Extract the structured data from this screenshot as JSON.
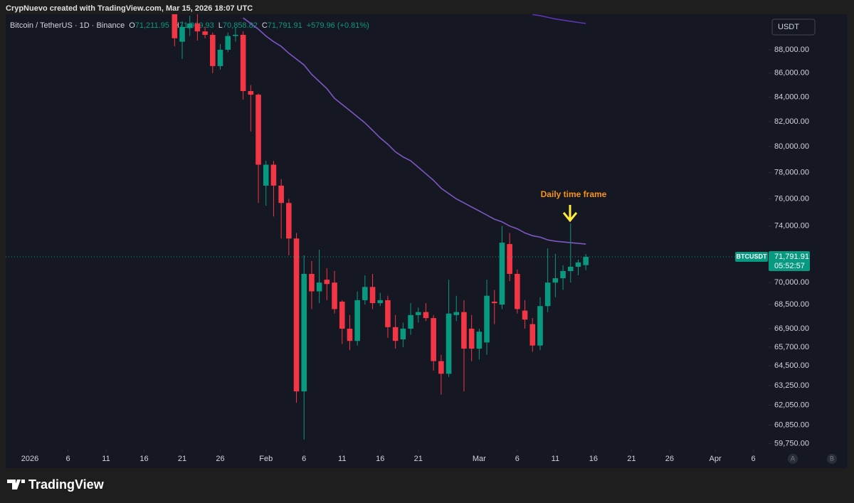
{
  "header": {
    "credit": "CrypNuevo created with TradingView.com, Mar 15, 2026 18:07 UTC"
  },
  "footer": {
    "brand": "TradingView"
  },
  "buttons": [
    "A",
    "B"
  ],
  "chart_data": {
    "type": "candlestick",
    "symbol": "Bitcoin / TetherUS · 1D · Binance",
    "legend": [
      {
        "key": "O",
        "label": "71,211.95"
      },
      {
        "key": "H",
        "label": "71,989.93"
      },
      {
        "key": "L",
        "label": "70,858.82"
      },
      {
        "key": "C",
        "label": "71,791.91"
      }
    ],
    "change": "+579.96 (+0.81%)",
    "currency": "USDT",
    "symbol_tag": "BTCUSDT",
    "last_price": {
      "value": 71791.91,
      "label": "71,791.91"
    },
    "countdown": "05:52:57",
    "annotation": "Daily time frame",
    "up_color": "#089981",
    "down_color": "#f23645",
    "log_scale": true,
    "grid": false,
    "x": [
      "2026-01-20",
      "2026-01-21",
      "2026-01-22",
      "2026-01-23",
      "2026-01-24",
      "2026-01-25",
      "2026-01-26",
      "2026-01-27",
      "2026-01-28",
      "2026-01-29",
      "2026-01-30",
      "2026-01-31",
      "2026-02-01",
      "2026-02-02",
      "2026-02-03",
      "2026-02-04",
      "2026-02-05",
      "2026-02-06",
      "2026-02-07",
      "2026-02-08",
      "2026-02-09",
      "2026-02-10",
      "2026-02-11",
      "2026-02-12",
      "2026-02-13",
      "2026-02-14",
      "2026-02-15",
      "2026-02-16",
      "2026-02-17",
      "2026-02-18",
      "2026-02-19",
      "2026-02-20",
      "2026-02-21",
      "2026-02-22",
      "2026-02-23",
      "2026-02-24",
      "2026-02-25",
      "2026-02-26",
      "2026-02-27",
      "2026-02-28",
      "2026-03-01",
      "2026-03-02",
      "2026-03-03",
      "2026-03-04",
      "2026-03-05",
      "2026-03-06",
      "2026-03-07",
      "2026-03-08",
      "2026-03-09",
      "2026-03-10",
      "2026-03-11",
      "2026-03-12",
      "2026-03-13",
      "2026-03-14",
      "2026-03-15"
    ],
    "open": [
      92000,
      88700,
      89900,
      90300,
      89600,
      89300,
      86600,
      88000,
      89200,
      89300,
      84500,
      84200,
      77000,
      78600,
      77000,
      75700,
      73100,
      62900,
      70600,
      69400,
      70200,
      70000,
      68700,
      66900,
      66100,
      68800,
      69700,
      68600,
      68800,
      67000,
      66200,
      66900,
      67800,
      68000,
      67600,
      64800,
      64000,
      67800,
      68000,
      66900,
      65600,
      66000,
      68700,
      68500,
      72700,
      70600,
      68100,
      67200,
      65800,
      68400,
      70000,
      70300,
      70800,
      71100,
      71211.95
    ],
    "high": [
      92500,
      90500,
      91000,
      91500,
      90000,
      89500,
      88500,
      89500,
      90000,
      89600,
      85000,
      84300,
      78900,
      78900,
      77500,
      76000,
      73500,
      71900,
      71500,
      72300,
      71000,
      70800,
      68800,
      67800,
      69400,
      70500,
      70600,
      69300,
      69100,
      67800,
      67300,
      68600,
      68300,
      68600,
      67800,
      65200,
      70200,
      69100,
      68800,
      67800,
      66900,
      70200,
      69500,
      74000,
      73500,
      70900,
      68800,
      67600,
      69000,
      72400,
      72000,
      71200,
      74200,
      71600,
      71989.93
    ],
    "low": [
      88300,
      87200,
      89200,
      88800,
      89000,
      86000,
      86300,
      87800,
      88700,
      83800,
      81200,
      75700,
      75500,
      74700,
      73100,
      71900,
      62200,
      60000,
      68200,
      68600,
      68800,
      67900,
      65900,
      65500,
      65800,
      68500,
      68200,
      68400,
      66300,
      65600,
      65700,
      66500,
      67300,
      67400,
      64200,
      62700,
      63800,
      67400,
      62900,
      64800,
      64900,
      65200,
      67200,
      68200,
      70100,
      67900,
      66900,
      65400,
      65500,
      68000,
      69000,
      69500,
      70000,
      70500,
      70858.82
    ],
    "close": [
      89000,
      90000,
      90300,
      89600,
      89300,
      86600,
      88000,
      89200,
      89300,
      84500,
      84200,
      78600,
      78600,
      77000,
      75700,
      73100,
      62900,
      70600,
      69400,
      70000,
      69900,
      68200,
      66900,
      66100,
      68800,
      69700,
      68600,
      68800,
      67000,
      66100,
      66900,
      67800,
      68000,
      67600,
      64800,
      64000,
      67900,
      68000,
      65600,
      65600,
      66700,
      69100,
      68600,
      72800,
      70600,
      68200,
      67500,
      65800,
      68400,
      70000,
      70300,
      70800,
      71100,
      71400,
      71791.91
    ],
    "overlays": [
      {
        "color": "#7e57c2",
        "values": [
          null,
          null,
          null,
          null,
          null,
          null,
          null,
          null,
          null,
          90800,
          90300,
          89800,
          89200,
          88700,
          88300,
          87700,
          87200,
          86700,
          85900,
          85300,
          84700,
          83900,
          83400,
          82900,
          82400,
          81900,
          81300,
          80700,
          80200,
          79600,
          79200,
          78900,
          78400,
          77900,
          77400,
          76800,
          76400,
          76000,
          75700,
          75400,
          75100,
          74800,
          74500,
          74300,
          74000,
          73800,
          73500,
          73300,
          73200,
          73000,
          72900,
          72850,
          72800,
          72750,
          72700
        ]
      },
      {
        "color": "#5e35b1",
        "values": [
          null,
          null,
          null,
          null,
          null,
          null,
          null,
          null,
          null,
          null,
          null,
          null,
          null,
          null,
          null,
          null,
          null,
          null,
          null,
          null,
          null,
          null,
          null,
          null,
          null,
          null,
          null,
          null,
          null,
          null,
          null,
          null,
          null,
          null,
          null,
          null,
          null,
          null,
          null,
          null,
          null,
          null,
          null,
          null,
          null,
          null,
          null,
          91100,
          91000,
          90850,
          90700,
          90600,
          90500,
          90400,
          90300
        ]
      }
    ],
    "xlim": [
      "2026-01-01",
      "2026-04-08"
    ],
    "xticks": [
      {
        "value": "2026-01-01",
        "label": "2026"
      },
      {
        "value": "2026-01-06",
        "label": "6"
      },
      {
        "value": "2026-01-11",
        "label": "11"
      },
      {
        "value": "2026-01-16",
        "label": "16"
      },
      {
        "value": "2026-01-21",
        "label": "21"
      },
      {
        "value": "2026-01-26",
        "label": "26"
      },
      {
        "value": "2026-02-01",
        "label": "Feb"
      },
      {
        "value": "2026-02-06",
        "label": "6"
      },
      {
        "value": "2026-02-11",
        "label": "11"
      },
      {
        "value": "2026-02-16",
        "label": "16"
      },
      {
        "value": "2026-02-21",
        "label": "21"
      },
      {
        "value": "2026-03-01",
        "label": "Mar"
      },
      {
        "value": "2026-03-06",
        "label": "6"
      },
      {
        "value": "2026-03-11",
        "label": "11"
      },
      {
        "value": "2026-03-16",
        "label": "16"
      },
      {
        "value": "2026-03-21",
        "label": "21"
      },
      {
        "value": "2026-03-26",
        "label": "26"
      },
      {
        "value": "2026-04-01",
        "label": "Apr"
      },
      {
        "value": "2026-04-06",
        "label": "6"
      }
    ],
    "ylim": [
      59400,
      91000
    ],
    "yticks": [
      {
        "value": 88000,
        "label": "88,000.00"
      },
      {
        "value": 86000,
        "label": "86,000.00"
      },
      {
        "value": 84000,
        "label": "84,000.00"
      },
      {
        "value": 82000,
        "label": "82,000.00"
      },
      {
        "value": 80000,
        "label": "80,000.00"
      },
      {
        "value": 78000,
        "label": "78,000.00"
      },
      {
        "value": 76000,
        "label": "76,000.00"
      },
      {
        "value": 74000,
        "label": "74,000.00"
      },
      {
        "value": 70000,
        "label": "70,000.00"
      },
      {
        "value": 68500,
        "label": "68,500.00"
      },
      {
        "value": 66900,
        "label": "66,900.00"
      },
      {
        "value": 65700,
        "label": "65,700.00"
      },
      {
        "value": 64500,
        "label": "64,500.00"
      },
      {
        "value": 63250,
        "label": "63,250.00"
      },
      {
        "value": 62050,
        "label": "62,050.00"
      },
      {
        "value": 60850,
        "label": "60,850.00"
      },
      {
        "value": 59750,
        "label": "59,750.00"
      }
    ]
  }
}
